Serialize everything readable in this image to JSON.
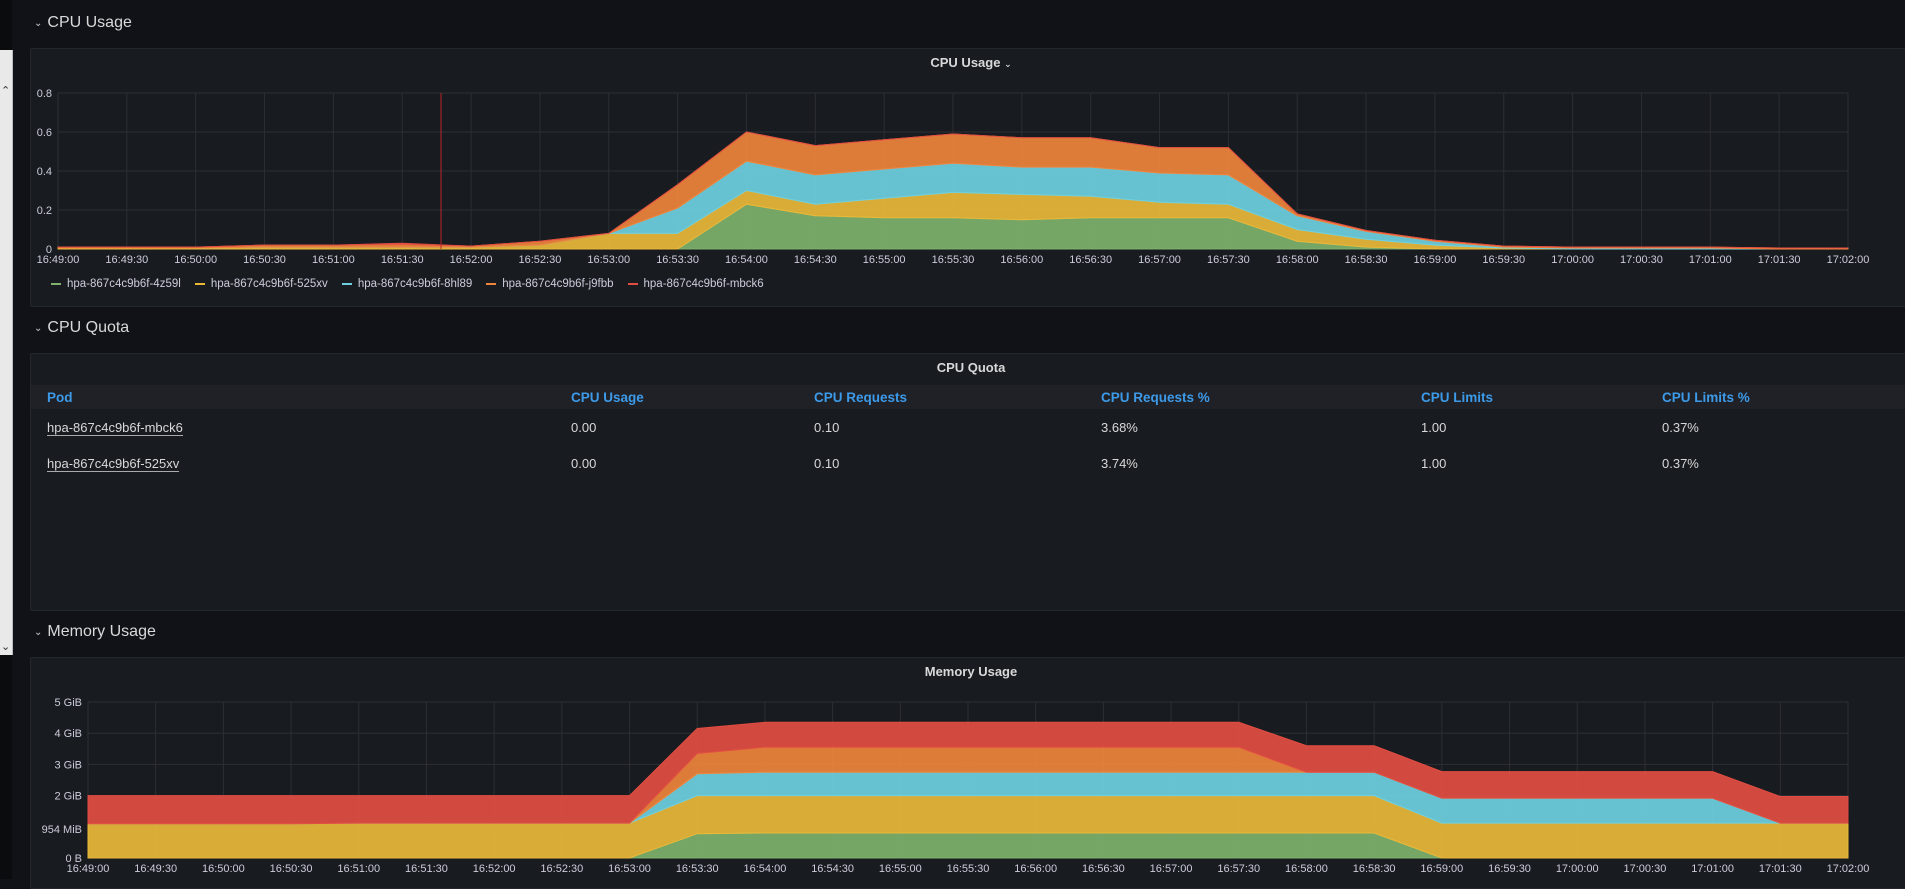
{
  "rows": {
    "cpu_usage": "CPU Usage",
    "cpu_quota": "CPU Quota",
    "memory_usage": "Memory Usage"
  },
  "panels": {
    "cpu_usage_title": "CPU Usage",
    "cpu_quota_title": "CPU Quota",
    "memory_usage_title": "Memory Usage"
  },
  "legend": [
    {
      "name": "hpa-867c4c9b6f-4z59l",
      "color": "#7eb26d"
    },
    {
      "name": "hpa-867c4c9b6f-525xv",
      "color": "#eab839"
    },
    {
      "name": "hpa-867c4c9b6f-8hl89",
      "color": "#6ed0e0"
    },
    {
      "name": "hpa-867c4c9b6f-j9fbb",
      "color": "#ef843c"
    },
    {
      "name": "hpa-867c4c9b6f-mbck6",
      "color": "#e24d42"
    }
  ],
  "table": {
    "headers": [
      "Pod",
      "CPU Usage",
      "CPU Requests",
      "CPU Requests %",
      "CPU Limits",
      "CPU Limits %"
    ],
    "rows": [
      [
        "hpa-867c4c9b6f-mbck6",
        "0.00",
        "0.10",
        "3.68%",
        "1.00",
        "0.37%"
      ],
      [
        "hpa-867c4c9b6f-525xv",
        "0.00",
        "0.10",
        "3.74%",
        "1.00",
        "0.37%"
      ]
    ]
  },
  "chart_data": [
    {
      "type": "area",
      "stacked": true,
      "title": "CPU Usage",
      "x": [
        "16:49:00",
        "16:49:30",
        "16:50:00",
        "16:50:30",
        "16:51:00",
        "16:51:30",
        "16:52:00",
        "16:52:30",
        "16:53:00",
        "16:53:30",
        "16:54:00",
        "16:54:30",
        "16:55:00",
        "16:55:30",
        "16:56:00",
        "16:56:30",
        "16:57:00",
        "16:57:30",
        "16:58:00",
        "16:58:30",
        "16:59:00",
        "16:59:30",
        "17:00:00",
        "17:00:30",
        "17:01:00",
        "17:01:30",
        "17:02:00"
      ],
      "ylim": [
        0,
        0.8
      ],
      "yticks": [
        0,
        0.2,
        0.4,
        0.6,
        0.8
      ],
      "ytick_labels": [
        "0",
        "0.2",
        "0.4",
        "0.6",
        "0.8"
      ],
      "series": [
        {
          "name": "hpa-867c4c9b6f-4z59l",
          "color": "#7eb26d",
          "values": [
            0,
            0,
            0,
            0,
            0,
            0,
            0,
            0,
            0,
            0,
            0.23,
            0.17,
            0.16,
            0.16,
            0.15,
            0.16,
            0.16,
            0.16,
            0.04,
            0.01,
            0,
            0,
            0,
            0,
            0,
            0,
            0
          ]
        },
        {
          "name": "hpa-867c4c9b6f-525xv",
          "color": "#eab839",
          "values": [
            0.005,
            0.005,
            0.005,
            0.01,
            0.01,
            0.01,
            0.01,
            0.02,
            0.08,
            0.08,
            0.07,
            0.06,
            0.1,
            0.13,
            0.13,
            0.11,
            0.08,
            0.07,
            0.06,
            0.04,
            0.02,
            0.005,
            0,
            0,
            0,
            0,
            0
          ]
        },
        {
          "name": "hpa-867c4c9b6f-8hl89",
          "color": "#6ed0e0",
          "values": [
            0,
            0,
            0,
            0,
            0,
            0,
            0,
            0,
            0,
            0.13,
            0.15,
            0.15,
            0.15,
            0.15,
            0.14,
            0.15,
            0.15,
            0.15,
            0.07,
            0.04,
            0.02,
            0.005,
            0.005,
            0.005,
            0.005,
            0,
            0
          ]
        },
        {
          "name": "hpa-867c4c9b6f-j9fbb",
          "color": "#ef843c",
          "values": [
            0.005,
            0.005,
            0.005,
            0.01,
            0.01,
            0.015,
            0.005,
            0.02,
            0,
            0.12,
            0.15,
            0.15,
            0.15,
            0.15,
            0.15,
            0.15,
            0.13,
            0.14,
            0.01,
            0.005,
            0.005,
            0.005,
            0.005,
            0.005,
            0.005,
            0.005,
            0.005
          ]
        },
        {
          "name": "hpa-867c4c9b6f-mbck6",
          "color": "#e24d42",
          "values": [
            0,
            0,
            0,
            0,
            0,
            0.005,
            0,
            0,
            0,
            0,
            0,
            0,
            0,
            0,
            0,
            0,
            0,
            0,
            0,
            0,
            0,
            0,
            0,
            0,
            0,
            0,
            0
          ]
        }
      ]
    },
    {
      "type": "area",
      "stacked": true,
      "title": "Memory Usage",
      "unit": "GiB",
      "x": [
        "16:49:00",
        "16:49:30",
        "16:50:00",
        "16:50:30",
        "16:51:00",
        "16:51:30",
        "16:52:00",
        "16:52:30",
        "16:53:00",
        "16:53:30",
        "16:54:00",
        "16:54:30",
        "16:55:00",
        "16:55:30",
        "16:56:00",
        "16:56:30",
        "16:57:00",
        "16:57:30",
        "16:58:00",
        "16:58:30",
        "16:59:00",
        "16:59:30",
        "17:00:00",
        "17:00:30",
        "17:01:00",
        "17:01:30",
        "17:02:00"
      ],
      "ylim": [
        0,
        5
      ],
      "yticks": [
        0,
        0.932,
        2,
        3,
        4,
        5
      ],
      "ytick_labels": [
        "0 B",
        "954 MiB",
        "2 GiB",
        "3 GiB",
        "4 GiB",
        "5 GiB"
      ],
      "series": [
        {
          "name": "hpa-867c4c9b6f-4z59l",
          "color": "#7eb26d",
          "values": [
            0,
            0,
            0,
            0,
            0,
            0,
            0,
            0,
            0,
            0.78,
            0.8,
            0.8,
            0.8,
            0.8,
            0.8,
            0.8,
            0.8,
            0.8,
            0.8,
            0.8,
            0,
            0,
            0,
            0,
            0,
            0,
            0
          ]
        },
        {
          "name": "hpa-867c4c9b6f-525xv",
          "color": "#eab839",
          "values": [
            1.1,
            1.1,
            1.1,
            1.1,
            1.12,
            1.12,
            1.12,
            1.12,
            1.12,
            1.22,
            1.2,
            1.2,
            1.2,
            1.2,
            1.2,
            1.2,
            1.2,
            1.2,
            1.2,
            1.2,
            1.12,
            1.12,
            1.12,
            1.12,
            1.12,
            1.12,
            1.12
          ]
        },
        {
          "name": "hpa-867c4c9b6f-8hl89",
          "color": "#6ed0e0",
          "values": [
            0,
            0,
            0,
            0,
            0,
            0,
            0,
            0,
            0,
            0.7,
            0.75,
            0.75,
            0.75,
            0.75,
            0.75,
            0.75,
            0.75,
            0.75,
            0.75,
            0.75,
            0.8,
            0.8,
            0.8,
            0.8,
            0.8,
            0,
            0
          ]
        },
        {
          "name": "hpa-867c4c9b6f-j9fbb",
          "color": "#ef843c",
          "values": [
            0,
            0,
            0,
            0,
            0,
            0,
            0,
            0,
            0,
            0.65,
            0.8,
            0.8,
            0.8,
            0.8,
            0.8,
            0.8,
            0.8,
            0.8,
            0,
            0,
            0,
            0,
            0,
            0,
            0,
            0,
            0
          ]
        },
        {
          "name": "hpa-867c4c9b6f-mbck6",
          "color": "#e24d42",
          "values": [
            0.9,
            0.9,
            0.9,
            0.9,
            0.88,
            0.88,
            0.88,
            0.88,
            0.88,
            0.8,
            0.8,
            0.8,
            0.8,
            0.8,
            0.8,
            0.8,
            0.8,
            0.8,
            0.85,
            0.85,
            0.85,
            0.85,
            0.85,
            0.85,
            0.85,
            0.85,
            0.85
          ]
        }
      ]
    }
  ]
}
